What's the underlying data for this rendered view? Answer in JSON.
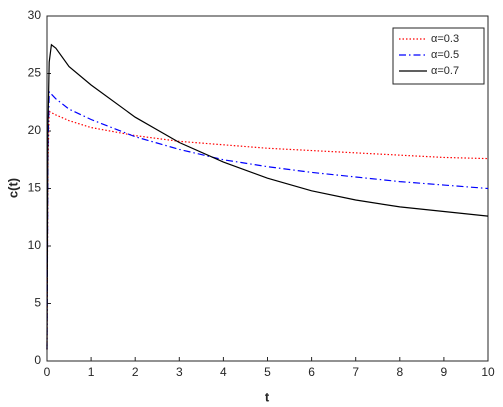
{
  "chart_data": {
    "type": "line",
    "xlabel": "t",
    "ylabel": "c(t)",
    "x": [
      0,
      0.02,
      0.05,
      0.1,
      0.2,
      0.5,
      1,
      2,
      3,
      4,
      5,
      6,
      7,
      8,
      9,
      10
    ],
    "series": [
      {
        "name": "α=0.3",
        "color": "#ff0000",
        "linestyle": "dotted",
        "values": [
          1,
          17,
          21.7,
          21.6,
          21.4,
          20.9,
          20.3,
          19.6,
          19.1,
          18.8,
          18.5,
          18.3,
          18.1,
          17.9,
          17.7,
          17.6
        ]
      },
      {
        "name": "α=0.5",
        "color": "#0000ff",
        "linestyle": "dashdot",
        "values": [
          1,
          18,
          23.4,
          23.2,
          22.8,
          21.9,
          21,
          19.5,
          18.4,
          17.5,
          16.9,
          16.4,
          16,
          15.6,
          15.3,
          15.0
        ]
      },
      {
        "name": "α=0.7",
        "color": "#000000",
        "linestyle": "solid",
        "values": [
          1,
          20,
          26,
          27.5,
          27.2,
          25.6,
          24,
          21.2,
          19,
          17.3,
          15.9,
          14.8,
          14.0,
          13.4,
          13.0,
          12.6
        ]
      }
    ],
    "xlim": [
      0,
      10
    ],
    "xticks": [
      0,
      1,
      2,
      3,
      4,
      5,
      6,
      7,
      8,
      9,
      10
    ],
    "ylim": [
      0,
      30
    ],
    "yticks": [
      0,
      5,
      10,
      15,
      20,
      25,
      30
    ],
    "grid": false,
    "legend_position": "upper-right"
  }
}
